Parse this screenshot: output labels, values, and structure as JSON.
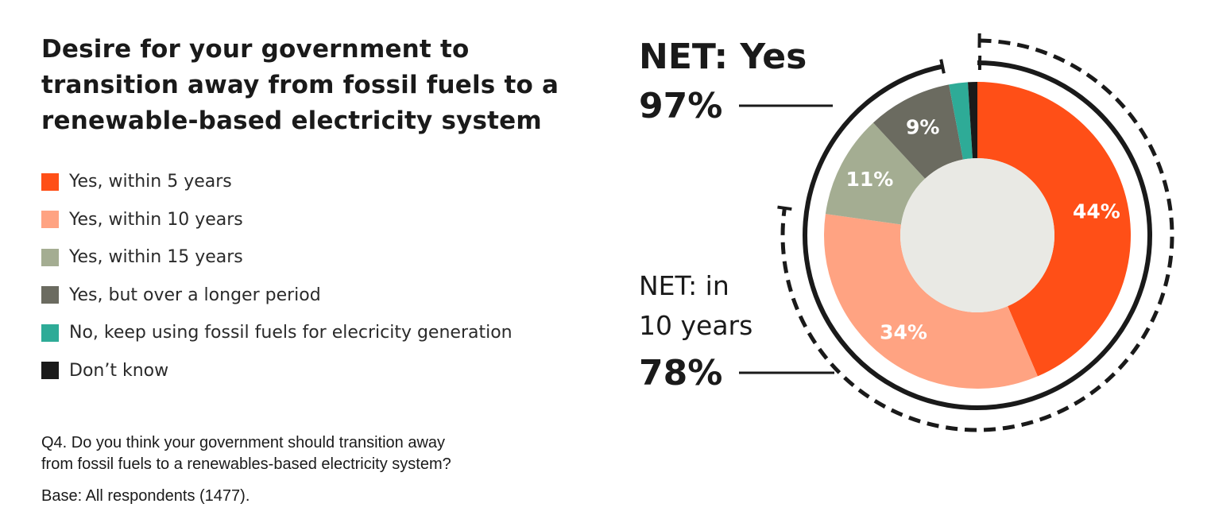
{
  "title_lines": [
    "Desire for your government to",
    "transition away from fossil fuels to a",
    "renewable-based electricity system"
  ],
  "question_lines": [
    "Q4. Do you think your government should transition away",
    "from fossil fuels to a renewables-based electricity system?"
  ],
  "base_note": "Base: All respondents (1477).",
  "colors": {
    "center": "#e9e9e4",
    "ring": "#1a1a1a",
    "callout_text": "#1a1a1a"
  },
  "chart_data": {
    "type": "pie",
    "style": "donut",
    "categories": [
      "Yes, within 5 years",
      "Yes, within 10 years",
      "Yes, within 15 years",
      "Yes, but over a longer period",
      "No, keep using fossil fuels for elecricity generation",
      "Don’t know"
    ],
    "values": [
      44,
      34,
      11,
      9,
      2,
      1
    ],
    "colors": [
      "#ff4f17",
      "#ffa382",
      "#a4ad92",
      "#6b6b60",
      "#2eab97",
      "#1a1a1a"
    ],
    "labels": [
      "44%",
      "34%",
      "11%",
      "9%",
      "",
      ""
    ],
    "label_colors": [
      "#ffffff",
      "#ffffff",
      "#ffffff",
      "#ffffff",
      "#ffffff",
      "#ffffff"
    ],
    "legend_position": "left",
    "direction": "clockwise from top",
    "annotations": [
      {
        "label_lines": [
          "NET: Yes"
        ],
        "value": "97%",
        "covers": [
          0,
          1,
          2,
          3
        ],
        "bracket": "solid"
      },
      {
        "label_lines": [
          "NET: in",
          "10 years"
        ],
        "value": "78%",
        "covers": [
          0,
          1
        ],
        "bracket": "dashed"
      }
    ]
  }
}
